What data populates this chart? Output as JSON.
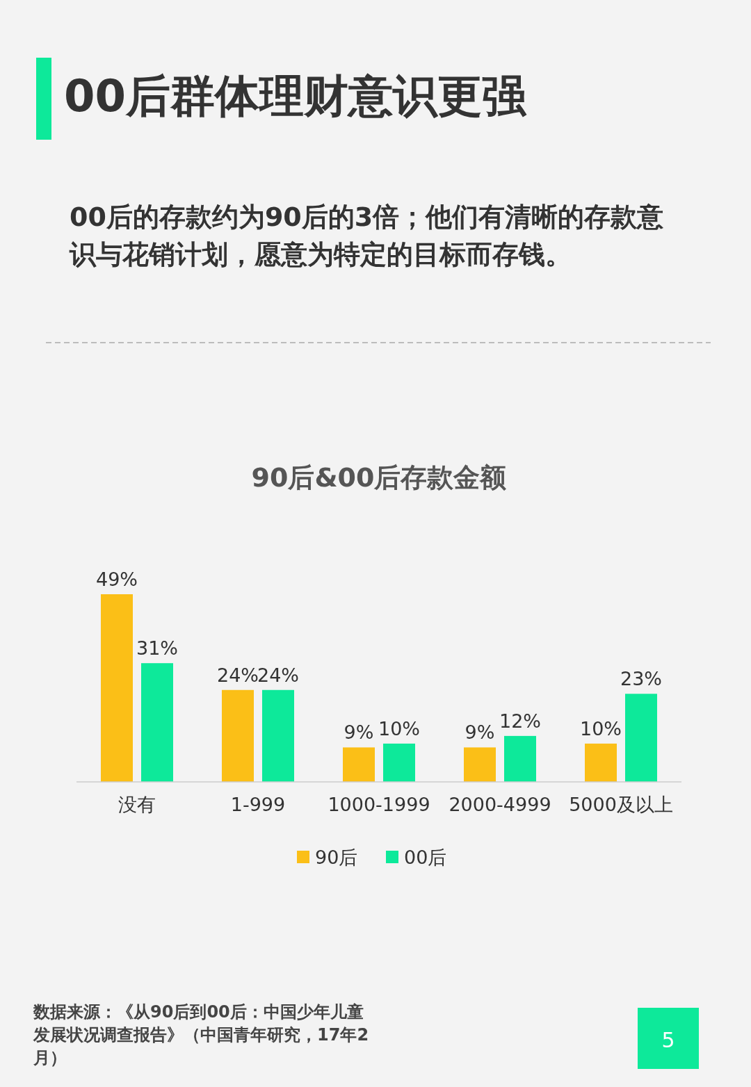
{
  "chart_data": {
    "type": "bar",
    "title": "00后群体理财意识更强",
    "subtitle": "00后的存款约为90后的3倍；他们有清晰的存款意识与花销计划，愿意为特定的目标而存钱。",
    "categories": [
      "没有",
      "1-999",
      "1000-1999",
      "2000-4999",
      "5000及以上"
    ],
    "series": [
      {
        "name": "90后",
        "color": "#fbbf17",
        "values": [
          49,
          24,
          9,
          9,
          10
        ],
        "value_labels": [
          "49%",
          "24%",
          "9%",
          "9%",
          "10%"
        ]
      },
      {
        "name": "00后",
        "color": "#0de99a",
        "values": [
          31,
          24,
          10,
          12,
          23
        ],
        "value_labels": [
          "31%",
          "24%",
          "10%",
          "12%",
          "23%"
        ]
      }
    ],
    "legend": "bottom",
    "annotations": [
      "90后&00后存款金额",
      "数据来源：《从90后到00后：中国少年儿童发展状况调查报告》（中国青年研究，17年2月）",
      "5"
    ]
  }
}
